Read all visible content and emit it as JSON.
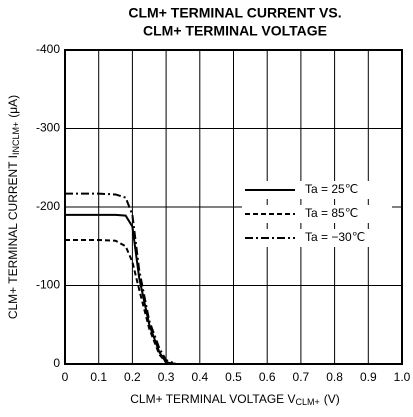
{
  "chart_data": {
    "type": "line",
    "title": [
      "CLM+ TERMINAL CURRENT VS.",
      "CLM+ TERMINAL VOLTAGE"
    ],
    "xlabel": {
      "text": "CLM+ TERMINAL VOLTAGE V",
      "sub": "CLM+",
      "unit": "(V)"
    },
    "ylabel": {
      "text": "CLM+ TERMINAL CURRENT I",
      "sub": "INCLM+",
      "unit": "(μA)"
    },
    "x": [
      0,
      0.05,
      0.1,
      0.15,
      0.18,
      0.2,
      0.22,
      0.25,
      0.28,
      0.3,
      0.33
    ],
    "series": [
      {
        "name": "Ta = 25℃",
        "color": "#000000",
        "dash": "none",
        "values": [
          -190,
          -190,
          -190,
          -190,
          -189,
          -175,
          -110,
          -50,
          -15,
          -2,
          0
        ]
      },
      {
        "name": "Ta = 85℃",
        "color": "#000000",
        "dash": "5,3",
        "values": [
          -158,
          -158,
          -158,
          -157,
          -150,
          -130,
          -95,
          -45,
          -12,
          -2,
          0
        ]
      },
      {
        "name": "Ta = −30℃",
        "color": "#000000",
        "dash": "8,3,2,3",
        "values": [
          -217,
          -217,
          -217,
          -216,
          -212,
          -190,
          -120,
          -55,
          -20,
          -5,
          0
        ]
      }
    ],
    "xlim": [
      0,
      1
    ],
    "xticks": [
      0,
      0.1,
      0.2,
      0.3,
      0.4,
      0.5,
      0.6,
      0.7,
      0.8,
      0.9,
      {
        "value": 1,
        "label": "1.0"
      }
    ],
    "ylim": [
      0,
      -400
    ],
    "yticks": [
      0,
      -100,
      -200,
      -300,
      -400
    ],
    "grid": true
  }
}
